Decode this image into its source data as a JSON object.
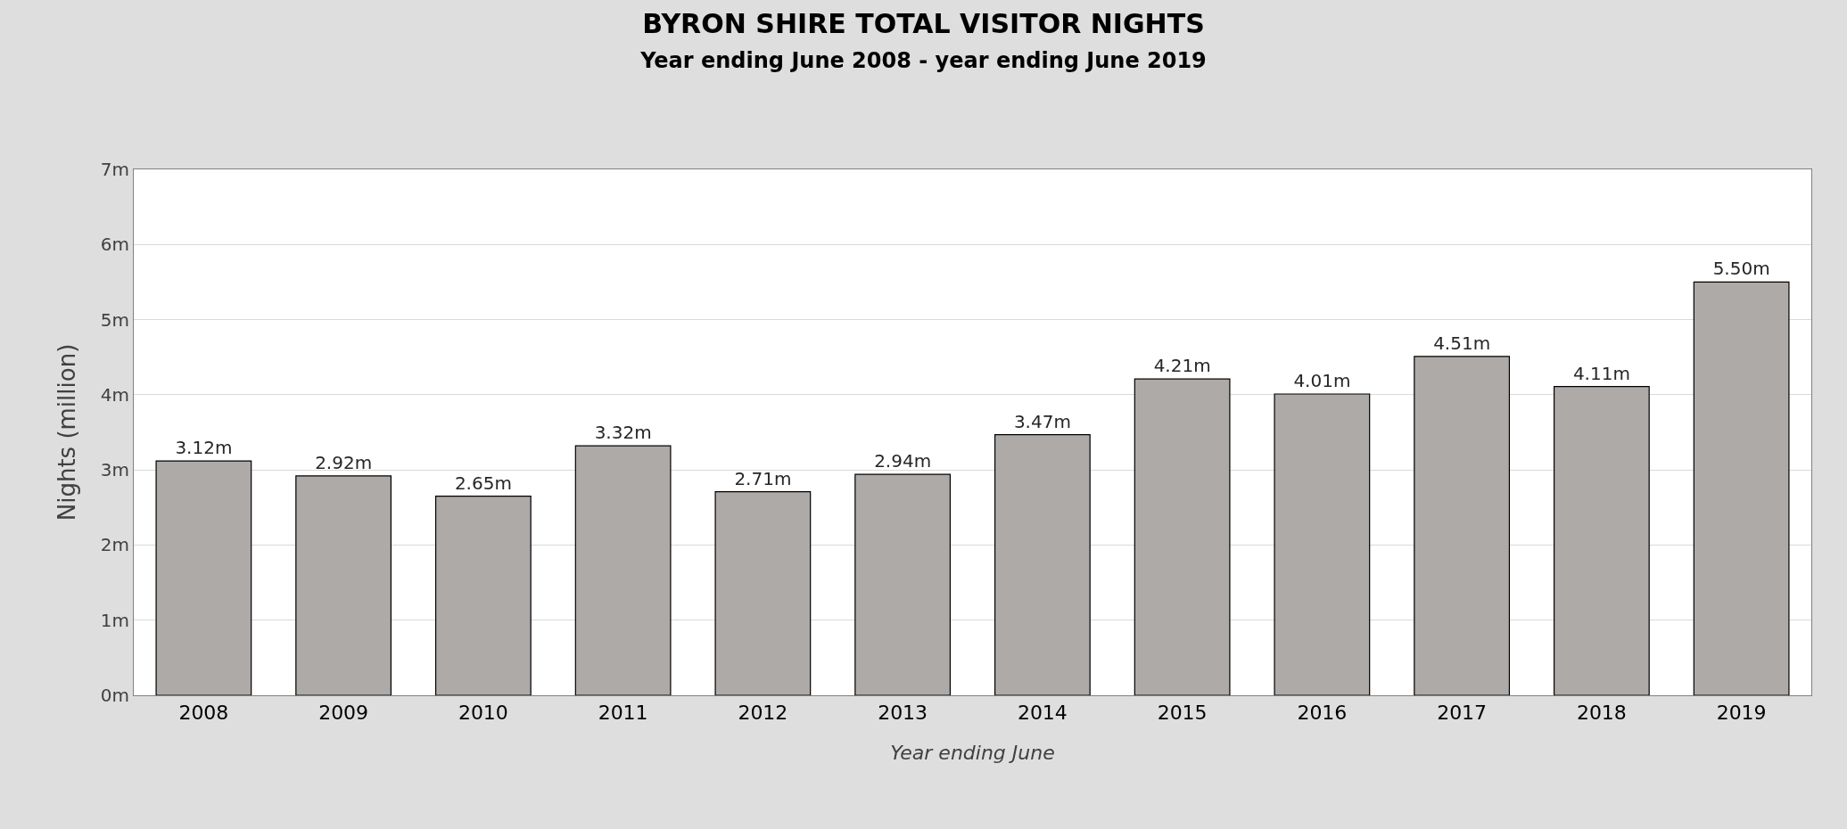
{
  "chart_data": {
    "type": "bar",
    "title": "BYRON SHIRE TOTAL VISITOR NIGHTS",
    "subtitle": "Year ending June 2008 - year ending June 2019",
    "xlabel": "Year ending June",
    "ylabel": "Nights (million)",
    "categories": [
      "2008",
      "2009",
      "2010",
      "2011",
      "2012",
      "2013",
      "2014",
      "2015",
      "2016",
      "2017",
      "2018",
      "2019"
    ],
    "values": [
      3.12,
      2.92,
      2.65,
      3.32,
      2.71,
      2.94,
      3.47,
      4.21,
      4.01,
      4.51,
      4.11,
      5.5
    ],
    "value_labels": [
      "3.12m",
      "2.92m",
      "2.65m",
      "3.32m",
      "2.71m",
      "2.94m",
      "3.47m",
      "4.21m",
      "4.01m",
      "4.51m",
      "4.11m",
      "5.50m"
    ],
    "color": "#aeaaa8",
    "ylim": [
      0,
      7
    ],
    "yticks": [
      {
        "value": 0,
        "label": "0m"
      },
      {
        "value": 1,
        "label": "1m"
      },
      {
        "value": 2,
        "label": "2m"
      },
      {
        "value": 3,
        "label": "3m"
      },
      {
        "value": 4,
        "label": "4m"
      },
      {
        "value": 5,
        "label": "5m"
      },
      {
        "value": 6,
        "label": "6m"
      },
      {
        "value": 7,
        "label": "7m"
      }
    ],
    "grid": "y",
    "legend": false
  }
}
